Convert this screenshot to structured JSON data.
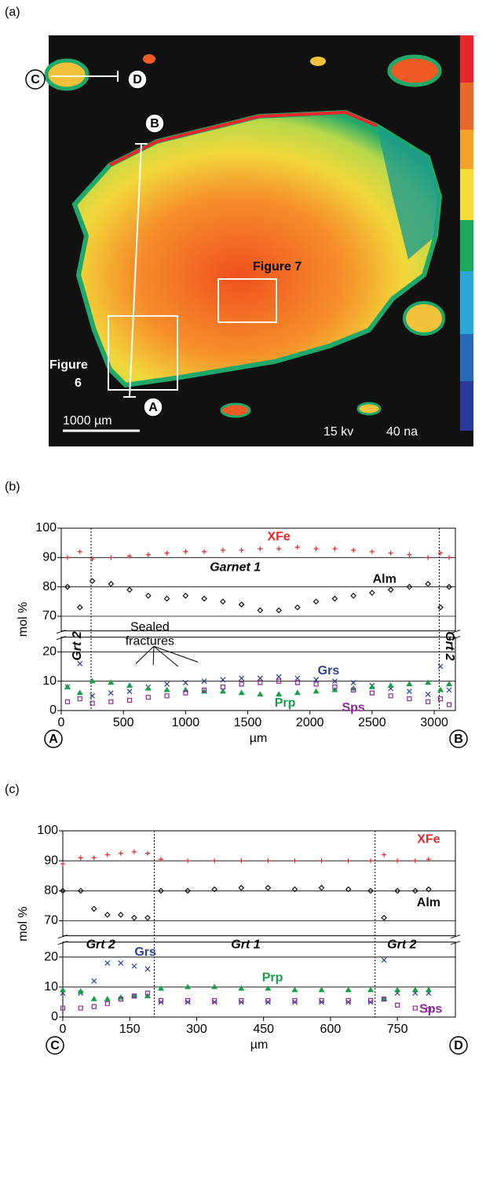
{
  "image": {
    "panel_label": "(a)",
    "points": [
      "A",
      "B",
      "C",
      "D"
    ],
    "figure_7": "Figure 7",
    "figure_6": [
      "Figure",
      "6"
    ],
    "scale_bar": "1000 µm",
    "voltage": "15 kv",
    "current": "40 na"
  },
  "chart_data": [
    {
      "type": "scatter",
      "panel_label": "(b)",
      "x_label": "µm",
      "y_label": "mol %",
      "end_labels": [
        "A",
        "B"
      ],
      "xlim": [
        0,
        3170
      ],
      "xticks": [
        0,
        500,
        1000,
        1500,
        2000,
        2500,
        3000
      ],
      "ylim": [
        0,
        100
      ],
      "axis_break": [
        25,
        65
      ],
      "yticks": [
        0,
        10,
        20,
        70,
        80,
        90,
        100
      ],
      "grid": true,
      "dividers": [
        240,
        3040
      ],
      "annotations": [
        "Garnet 1",
        "Grt 2",
        "Grt 2"
      ],
      "sealed_label": [
        "Sealed",
        "fractures"
      ],
      "x": [
        50,
        150,
        250,
        400,
        550,
        700,
        850,
        1000,
        1150,
        1300,
        1450,
        1600,
        1750,
        1900,
        2050,
        2200,
        2350,
        2500,
        2650,
        2800,
        2950,
        3050,
        3120
      ],
      "series": [
        {
          "name": "XFe",
          "color": "#e8262b",
          "marker": "plus",
          "values": [
            90,
            92,
            89.5,
            90,
            90.5,
            91,
            91.5,
            92,
            92,
            92.5,
            92.5,
            93,
            93,
            93.5,
            93,
            93,
            92.5,
            92,
            91.5,
            91,
            90,
            91.5,
            90
          ]
        },
        {
          "name": "Alm",
          "color": "#111111",
          "marker": "diamond",
          "values": [
            80,
            73,
            82,
            81,
            79,
            77,
            76,
            77,
            76,
            75,
            74,
            72,
            72,
            73,
            75,
            76,
            77,
            78,
            79,
            80,
            81,
            73,
            80
          ]
        },
        {
          "name": "Grs",
          "color": "#2b3fa0",
          "marker": "cross",
          "values": [
            8,
            16,
            5,
            6,
            6.5,
            8,
            9,
            9.5,
            10,
            10.5,
            11,
            11,
            11.5,
            11,
            10.5,
            10,
            9.5,
            8.5,
            7.5,
            6.5,
            5.5,
            15,
            7
          ]
        },
        {
          "name": "Prp",
          "color": "#16a04a",
          "marker": "triangle",
          "values": [
            8,
            6,
            10,
            9.5,
            8.5,
            7.5,
            7,
            7,
            6.5,
            6.5,
            6,
            5.5,
            5.5,
            6,
            6.5,
            7,
            7.5,
            8,
            8.5,
            9,
            9.5,
            7,
            9
          ]
        },
        {
          "name": "Sps",
          "color": "#8e2a9c",
          "marker": "square",
          "values": [
            3,
            4,
            2.5,
            3,
            3.5,
            4.5,
            5,
            6,
            7,
            8,
            9,
            9.5,
            10,
            9.5,
            9,
            8,
            7,
            6,
            5,
            4,
            3,
            4,
            2
          ]
        }
      ]
    },
    {
      "type": "scatter",
      "panel_label": "(c)",
      "x_label": "µm",
      "y_label": "mol %",
      "end_labels": [
        "C",
        "D"
      ],
      "xlim": [
        0,
        880
      ],
      "xticks": [
        0,
        150,
        300,
        450,
        600,
        750
      ],
      "ylim": [
        0,
        100
      ],
      "axis_break": [
        25,
        65
      ],
      "yticks": [
        0,
        10,
        20,
        70,
        80,
        90,
        100
      ],
      "grid": true,
      "dividers": [
        205,
        700
      ],
      "annotations": [
        "Grt 2",
        "Grt 1",
        "Grt 2"
      ],
      "x": [
        0,
        40,
        70,
        100,
        130,
        160,
        190,
        220,
        280,
        340,
        400,
        460,
        520,
        580,
        640,
        690,
        720,
        750,
        790,
        820
      ],
      "series": [
        {
          "name": "XFe",
          "color": "#e8262b",
          "marker": "plus",
          "values": [
            89,
            91,
            91,
            92,
            92.5,
            93,
            92.5,
            90.5,
            90,
            90,
            90,
            90,
            90,
            90,
            90,
            90,
            92,
            90,
            90,
            90.5
          ]
        },
        {
          "name": "Alm",
          "color": "#111111",
          "marker": "diamond",
          "values": [
            80,
            80,
            74,
            72,
            72,
            71,
            71,
            80,
            80,
            80.5,
            81,
            81,
            80.5,
            81,
            80.5,
            80,
            71,
            80,
            80,
            80.5
          ]
        },
        {
          "name": "Grs",
          "color": "#2b3fa0",
          "marker": "cross",
          "values": [
            8,
            8,
            12,
            18,
            18,
            17,
            16,
            5,
            5,
            5,
            5,
            5,
            5,
            5,
            5,
            5,
            19,
            8,
            8,
            8
          ]
        },
        {
          "name": "Prp",
          "color": "#16a04a",
          "marker": "triangle",
          "values": [
            9,
            8.5,
            6,
            6,
            6.5,
            7,
            7,
            9.5,
            10,
            10,
            9.5,
            9.5,
            9,
            9,
            9,
            9,
            6,
            9,
            9,
            9
          ]
        },
        {
          "name": "Sps",
          "color": "#8e2a9c",
          "marker": "square",
          "values": [
            3,
            3,
            3.5,
            4.5,
            6,
            7,
            8,
            5.5,
            5.5,
            5.5,
            5.5,
            5.5,
            5.5,
            5.5,
            5.5,
            5.5,
            6,
            4,
            3,
            2.5
          ]
        }
      ]
    }
  ]
}
